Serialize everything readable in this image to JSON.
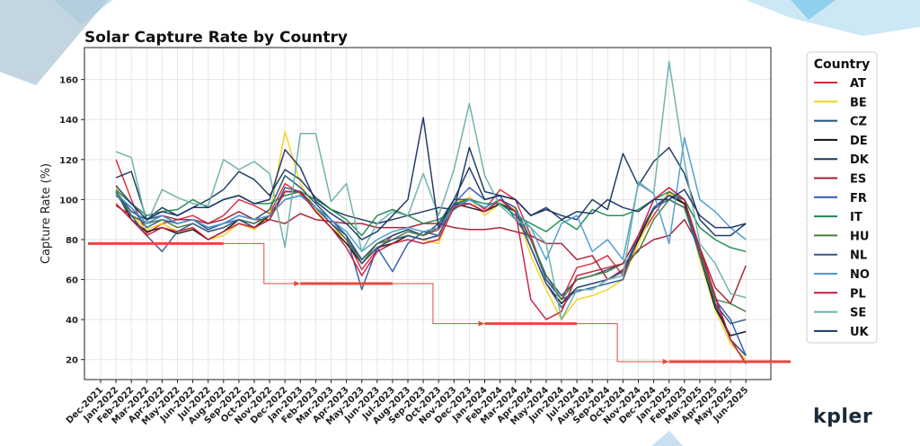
{
  "brand": {
    "name": "kpler"
  },
  "chart_data": {
    "type": "line",
    "title": "Solar Capture Rate by Country",
    "ylabel": "Capture Rate (%)",
    "xlabel": "",
    "ylim": [
      10,
      176
    ],
    "yticks": [
      20,
      40,
      60,
      80,
      100,
      120,
      140,
      160
    ],
    "grid": true,
    "legend": {
      "title": "Country",
      "placement": "right-outside"
    },
    "x_ticks": [
      "Dec-2021",
      "Jan-2022",
      "Feb-2022",
      "Mar-2022",
      "Apr-2022",
      "May-2022",
      "Jun-2022",
      "Jul-2022",
      "Aug-2022",
      "Sep-2022",
      "Oct-2022",
      "Nov-2022",
      "Dec-2022",
      "Jan-2023",
      "Feb-2023",
      "Mar-2023",
      "Apr-2023",
      "May-2023",
      "Jun-2023",
      "Jul-2023",
      "Aug-2023",
      "Sep-2023",
      "Oct-2023",
      "Nov-2023",
      "Dec-2023",
      "Jan-2024",
      "Feb-2024",
      "Mar-2024",
      "Apr-2024",
      "May-2024",
      "Jun-2024",
      "Jul-2024",
      "Aug-2024",
      "Sep-2024",
      "Oct-2024",
      "Nov-2024",
      "Dec-2024",
      "Jan-2025",
      "Feb-2025",
      "Mar-2025",
      "Apr-2025",
      "May-2025",
      "Jun-2025"
    ],
    "x_data_start_index": 1,
    "series": [
      {
        "name": "AT",
        "color": "#d62839",
        "values": [
          120,
          100,
          83,
          88,
          90,
          92,
          88,
          92,
          100,
          97,
          93,
          108,
          103,
          96,
          88,
          80,
          65,
          75,
          82,
          85,
          82,
          85,
          96,
          101,
          95,
          105,
          100,
          82,
          60,
          50,
          66,
          68,
          72,
          62,
          80,
          92,
          104,
          98,
          76,
          51,
          30,
          18
        ]
      },
      {
        "name": "BE",
        "color": "#f2d21b",
        "values": [
          106,
          92,
          85,
          88,
          84,
          86,
          80,
          82,
          88,
          85,
          92,
          134,
          108,
          95,
          86,
          80,
          70,
          78,
          80,
          82,
          80,
          78,
          98,
          101,
          92,
          98,
          95,
          72,
          55,
          40,
          50,
          52,
          55,
          60,
          78,
          95,
          103,
          100,
          70,
          45,
          28,
          20
        ]
      },
      {
        "name": "CZ",
        "color": "#1f4e79",
        "values": [
          104,
          94,
          90,
          92,
          88,
          90,
          85,
          88,
          92,
          90,
          95,
          112,
          106,
          98,
          90,
          82,
          70,
          78,
          82,
          85,
          82,
          88,
          100,
          100,
          96,
          100,
          96,
          80,
          62,
          52,
          60,
          62,
          65,
          68,
          82,
          95,
          102,
          98,
          75,
          48,
          30,
          22
        ]
      },
      {
        "name": "DE",
        "color": "#111111",
        "values": [
          104,
          90,
          84,
          86,
          83,
          85,
          80,
          84,
          90,
          86,
          92,
          104,
          104,
          94,
          86,
          78,
          68,
          76,
          78,
          82,
          80,
          82,
          98,
          96,
          94,
          98,
          94,
          76,
          58,
          48,
          56,
          58,
          60,
          64,
          80,
          96,
          102,
          98,
          72,
          46,
          32,
          34
        ]
      },
      {
        "name": "DK",
        "color": "#16365c",
        "values": [
          111,
          114,
          90,
          96,
          92,
          96,
          100,
          105,
          114,
          110,
          102,
          115,
          110,
          101,
          95,
          92,
          90,
          88,
          90,
          92,
          94,
          96,
          95,
          126,
          104,
          102,
          100,
          92,
          95,
          92,
          90,
          100,
          95,
          123,
          107,
          119,
          126,
          113,
          90,
          82,
          82,
          88
        ]
      },
      {
        "name": "ES",
        "color": "#a51c30",
        "values": [
          97,
          92,
          88,
          92,
          90,
          90,
          88,
          90,
          94,
          90,
          90,
          88,
          93,
          90,
          89,
          88,
          88,
          86,
          86,
          86,
          88,
          88,
          86,
          85,
          85,
          86,
          84,
          82,
          78,
          78,
          70,
          72,
          60,
          65,
          75,
          80,
          82,
          90,
          76,
          56,
          48,
          67
        ]
      },
      {
        "name": "FR",
        "color": "#2a5caa",
        "values": [
          102,
          96,
          86,
          90,
          88,
          90,
          86,
          88,
          90,
          88,
          92,
          100,
          102,
          96,
          90,
          82,
          55,
          76,
          64,
          78,
          84,
          82,
          98,
          106,
          100,
          102,
          90,
          80,
          60,
          50,
          54,
          56,
          58,
          60,
          82,
          96,
          100,
          96,
          72,
          50,
          40,
          22
        ]
      },
      {
        "name": "IT",
        "color": "#1e8a4c",
        "values": [
          105,
          98,
          92,
          94,
          95,
          100,
          96,
          100,
          102,
          98,
          98,
          102,
          104,
          100,
          95,
          90,
          82,
          92,
          95,
          92,
          88,
          90,
          95,
          100,
          98,
          98,
          92,
          88,
          84,
          90,
          85,
          95,
          92,
          92,
          95,
          100,
          104,
          100,
          86,
          80,
          76,
          74
        ]
      },
      {
        "name": "HU",
        "color": "#4a7a3a",
        "values": [
          103,
          92,
          88,
          90,
          86,
          88,
          84,
          86,
          90,
          88,
          92,
          104,
          104,
          96,
          88,
          80,
          68,
          78,
          80,
          84,
          82,
          86,
          98,
          100,
          96,
          100,
          94,
          80,
          62,
          50,
          60,
          62,
          64,
          68,
          74,
          90,
          100,
          96,
          74,
          50,
          48,
          44
        ]
      },
      {
        "name": "NL",
        "color": "#3a5a8a",
        "values": [
          104,
          92,
          82,
          74,
          84,
          88,
          84,
          86,
          90,
          86,
          90,
          106,
          104,
          96,
          88,
          82,
          68,
          76,
          80,
          82,
          80,
          82,
          98,
          98,
          94,
          100,
          94,
          76,
          58,
          46,
          56,
          58,
          60,
          64,
          82,
          96,
          102,
          100,
          72,
          48,
          38,
          40
        ]
      },
      {
        "name": "NO",
        "color": "#4a9bd4",
        "values": [
          103,
          96,
          88,
          92,
          88,
          90,
          86,
          88,
          92,
          90,
          92,
          100,
          102,
          96,
          90,
          84,
          74,
          80,
          84,
          86,
          84,
          86,
          96,
          100,
          96,
          100,
          94,
          86,
          70,
          88,
          92,
          74,
          80,
          70,
          108,
          103,
          78,
          131,
          100,
          94,
          86,
          80
        ]
      },
      {
        "name": "PL",
        "color": "#c8193e",
        "values": [
          98,
          90,
          82,
          86,
          84,
          86,
          80,
          84,
          88,
          86,
          90,
          104,
          104,
          94,
          86,
          76,
          62,
          74,
          78,
          80,
          78,
          80,
          96,
          98,
          94,
          100,
          94,
          50,
          40,
          44,
          62,
          64,
          66,
          68,
          82,
          100,
          106,
          100,
          76,
          52,
          30,
          18
        ]
      },
      {
        "name": "SE",
        "color": "#6ab0a8",
        "values": [
          124,
          121,
          88,
          105,
          101,
          98,
          97,
          120,
          115,
          119,
          113,
          76,
          133,
          133,
          99,
          108,
          74,
          88,
          94,
          92,
          113,
          92,
          115,
          148,
          112,
          97,
          90,
          86,
          78,
          40,
          55,
          55,
          60,
          62,
          109,
          103,
          169,
          119,
          78,
          68,
          53,
          51
        ]
      },
      {
        "name": "UK",
        "color": "#1a3266",
        "values": [
          107,
          98,
          90,
          94,
          92,
          96,
          96,
          100,
          102,
          98,
          100,
          125,
          116,
          99,
          93,
          88,
          80,
          84,
          92,
          100,
          141,
          86,
          100,
          116,
          100,
          102,
          100,
          92,
          96,
          90,
          94,
          93,
          100,
          96,
          94,
          100,
          100,
          105,
          92,
          86,
          86,
          88
        ]
      }
    ],
    "annotation_steps": [
      {
        "start": "Dec-2021",
        "end": "Aug-2022",
        "level": 78
      },
      {
        "start": "Jan-2023",
        "end": "Jul-2023",
        "level": 58
      },
      {
        "start": "Jan-2024",
        "end": "Jul-2024",
        "level": 38
      },
      {
        "start": "Jan-2025",
        "end": "Jun-2025",
        "level": 19
      }
    ]
  }
}
